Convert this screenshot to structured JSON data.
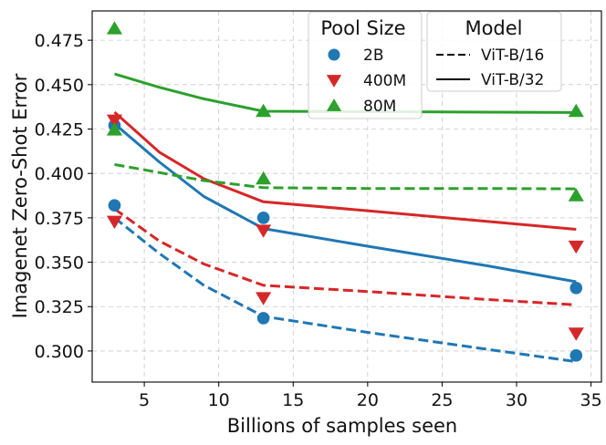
{
  "chart_data": {
    "type": "scatter",
    "xlabel": "Billions of samples seen",
    "ylabel": "Imagenet Zero-Shot Error",
    "xlim": [
      1.5,
      35.7
    ],
    "ylim": [
      0.2825,
      0.4915
    ],
    "xticks": [
      5,
      10,
      15,
      20,
      25,
      30,
      35
    ],
    "yticks": [
      0.3,
      0.325,
      0.35,
      0.375,
      0.4,
      0.425,
      0.45,
      0.475
    ],
    "grid": true,
    "colors": {
      "2B": "#1f77b4",
      "400M": "#d62728",
      "80M": "#2ca02c"
    },
    "pool_legend": {
      "title": "Pool Size",
      "entries": [
        {
          "label": "2B",
          "marker": "circle",
          "color": "#1f77b4"
        },
        {
          "label": "400M",
          "marker": "triangle-down",
          "color": "#d62728"
        },
        {
          "label": "80M",
          "marker": "triangle-up",
          "color": "#2ca02c"
        }
      ]
    },
    "model_legend": {
      "title": "Model",
      "entries": [
        {
          "label": "ViT-B/16",
          "style": "dashed"
        },
        {
          "label": "ViT-B/32",
          "style": "solid"
        }
      ]
    },
    "points": [
      {
        "pool": "2B",
        "marker": "circle",
        "x": [
          3,
          3,
          13,
          13,
          34,
          34
        ],
        "y": [
          0.382,
          0.427,
          0.3185,
          0.375,
          0.2975,
          0.3355
        ]
      },
      {
        "pool": "400M",
        "marker": "triangle-down",
        "x": [
          3,
          3,
          13,
          13,
          34,
          34
        ],
        "y": [
          0.373,
          0.43,
          0.33,
          0.368,
          0.31,
          0.359
        ]
      },
      {
        "pool": "80M",
        "marker": "triangle-up",
        "x": [
          3,
          3,
          13,
          13,
          34,
          34
        ],
        "y": [
          0.4815,
          0.4245,
          0.397,
          0.435,
          0.3875,
          0.435
        ]
      }
    ],
    "fits": [
      {
        "pool": "2B",
        "model": "ViT-B/16",
        "style": "dashed",
        "x": [
          3,
          6,
          9,
          13,
          20,
          28,
          34
        ],
        "y": [
          0.375,
          0.355,
          0.337,
          0.3195,
          0.3105,
          0.301,
          0.294
        ]
      },
      {
        "pool": "2B",
        "model": "ViT-B/32",
        "style": "solid",
        "x": [
          3,
          6,
          9,
          13,
          20,
          28,
          34
        ],
        "y": [
          0.428,
          0.4065,
          0.387,
          0.369,
          0.359,
          0.348,
          0.339
        ]
      },
      {
        "pool": "400M",
        "model": "ViT-B/16",
        "style": "dashed",
        "x": [
          3,
          6,
          9,
          13,
          20,
          28,
          34
        ],
        "y": [
          0.38,
          0.362,
          0.349,
          0.337,
          0.3335,
          0.329,
          0.326
        ]
      },
      {
        "pool": "400M",
        "model": "ViT-B/32",
        "style": "solid",
        "x": [
          3,
          6,
          9,
          13,
          20,
          28,
          34
        ],
        "y": [
          0.4345,
          0.412,
          0.397,
          0.384,
          0.379,
          0.373,
          0.3685
        ]
      },
      {
        "pool": "80M",
        "model": "ViT-B/16",
        "style": "dashed",
        "x": [
          3,
          6,
          9,
          13,
          20,
          28,
          34
        ],
        "y": [
          0.405,
          0.4005,
          0.396,
          0.392,
          0.3915,
          0.3915,
          0.3913
        ]
      },
      {
        "pool": "80M",
        "model": "ViT-B/32",
        "style": "solid",
        "x": [
          3,
          6,
          9,
          13,
          20,
          28,
          34
        ],
        "y": [
          0.456,
          0.4485,
          0.442,
          0.435,
          0.4348,
          0.4345,
          0.4343
        ]
      }
    ]
  }
}
